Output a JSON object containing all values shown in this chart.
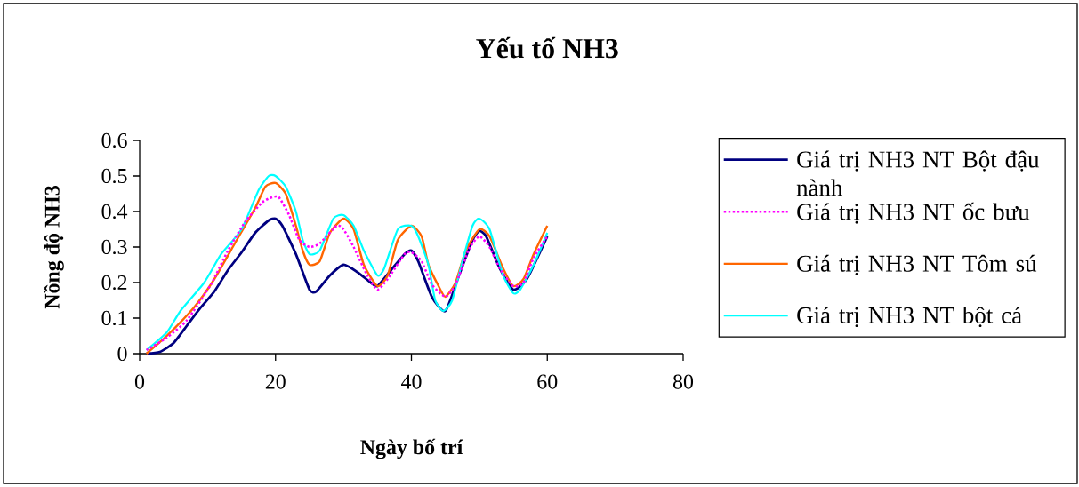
{
  "chart_data": {
    "type": "line",
    "title": "Yếu tố NH3",
    "xlabel": "Ngày bố trí",
    "ylabel": "Nồng độ NH3",
    "xlim": [
      0,
      80
    ],
    "xticks": [
      0,
      20,
      40,
      60,
      80
    ],
    "ylim": [
      0,
      0.6
    ],
    "yticks": [
      0,
      0.1,
      0.2,
      0.3,
      0.4,
      0.5,
      0.6
    ],
    "legend": "right",
    "series": [
      {
        "name": "Giá trị NH3 NT Bột đậu nành",
        "color": "#000080",
        "line_style": "solid",
        "x": [
          1,
          3,
          5,
          7,
          9,
          11,
          13,
          15,
          17,
          19,
          20,
          21,
          23,
          25,
          26,
          28,
          30,
          32,
          34,
          35,
          37,
          39,
          40,
          41,
          43,
          45,
          47,
          49,
          50,
          51,
          53,
          55,
          57,
          60
        ],
        "values": [
          0,
          0.005,
          0.03,
          0.08,
          0.13,
          0.175,
          0.235,
          0.285,
          0.34,
          0.375,
          0.38,
          0.36,
          0.28,
          0.18,
          0.175,
          0.22,
          0.25,
          0.23,
          0.2,
          0.19,
          0.235,
          0.28,
          0.29,
          0.26,
          0.16,
          0.12,
          0.22,
          0.32,
          0.345,
          0.33,
          0.24,
          0.18,
          0.21,
          0.33
        ]
      },
      {
        "name": "Giá trị NH3 NT ốc bưu",
        "color": "#ff00ff",
        "line_style": "dotted",
        "x": [
          1,
          4,
          7,
          10.5,
          13,
          15.5,
          18,
          19.5,
          20.5,
          22,
          23.5,
          25,
          26.5,
          29,
          30,
          31.5,
          33.5,
          35,
          36.5,
          39,
          40,
          41.5,
          43,
          45,
          46.5,
          48.5,
          50,
          51.5,
          53,
          55,
          56.5,
          58,
          60
        ],
        "values": [
          0.01,
          0.045,
          0.095,
          0.195,
          0.29,
          0.37,
          0.425,
          0.44,
          0.44,
          0.39,
          0.32,
          0.3,
          0.31,
          0.36,
          0.35,
          0.3,
          0.22,
          0.18,
          0.21,
          0.28,
          0.285,
          0.26,
          0.195,
          0.16,
          0.195,
          0.295,
          0.33,
          0.3,
          0.24,
          0.19,
          0.2,
          0.27,
          0.33
        ]
      },
      {
        "name": "Giá trị NH3 NT Tôm sú",
        "color": "#ff6600",
        "line_style": "solid",
        "x": [
          1,
          4,
          8,
          11,
          14,
          17,
          18.5,
          20,
          21.5,
          23,
          24,
          25,
          26.5,
          28,
          30,
          31.5,
          33,
          35,
          36.5,
          38,
          40,
          41.5,
          42.5,
          44,
          45,
          46.5,
          48,
          50,
          51.5,
          53.5,
          55,
          56.5,
          58,
          60
        ],
        "values": [
          0,
          0.05,
          0.13,
          0.21,
          0.31,
          0.41,
          0.47,
          0.48,
          0.45,
          0.36,
          0.29,
          0.25,
          0.26,
          0.34,
          0.38,
          0.35,
          0.25,
          0.19,
          0.22,
          0.32,
          0.36,
          0.33,
          0.25,
          0.19,
          0.16,
          0.2,
          0.29,
          0.35,
          0.33,
          0.24,
          0.19,
          0.21,
          0.28,
          0.36
        ]
      },
      {
        "name": "Giá trị NH3 NT bột cá",
        "color": "#00ffff",
        "line_style": "solid",
        "x": [
          1,
          4,
          6,
          9.5,
          12,
          15,
          17.5,
          19,
          20,
          21.5,
          23,
          24,
          25,
          26.5,
          28.5,
          30,
          31.5,
          33,
          35,
          36,
          38,
          40,
          41,
          42.5,
          43.5,
          44.7,
          46,
          47.5,
          49,
          50,
          51.5,
          53.5,
          55,
          56,
          58,
          60
        ],
        "values": [
          0.01,
          0.06,
          0.12,
          0.2,
          0.28,
          0.35,
          0.46,
          0.5,
          0.5,
          0.47,
          0.4,
          0.32,
          0.28,
          0.29,
          0.38,
          0.39,
          0.36,
          0.29,
          0.22,
          0.24,
          0.35,
          0.36,
          0.33,
          0.25,
          0.15,
          0.12,
          0.15,
          0.26,
          0.36,
          0.38,
          0.35,
          0.22,
          0.17,
          0.18,
          0.25,
          0.34
        ]
      }
    ]
  }
}
